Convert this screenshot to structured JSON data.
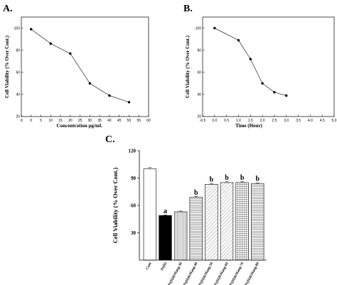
{
  "chart_data": [
    {
      "panel": "A.",
      "type": "line",
      "xlabel": "Concentration µg/mL",
      "ylabel": "Cell Viability (% Over Cont.)",
      "xlim": [
        -5,
        60
      ],
      "ylim": [
        20,
        110
      ],
      "xticks": [
        "-5",
        "0",
        "5",
        "10",
        "15",
        "20",
        "25",
        "30",
        "35",
        "40",
        "45",
        "50",
        "55",
        "60"
      ],
      "yticks": [
        "20",
        "40",
        "60",
        "80",
        "100"
      ],
      "series": [
        {
          "x": [
            0,
            10,
            20,
            30,
            40,
            50
          ],
          "values": [
            99,
            86,
            77,
            50,
            39,
            33
          ]
        }
      ]
    },
    {
      "panel": "B.",
      "type": "line",
      "xlabel": "Time  (Hour)",
      "ylabel": "Cell Viability (% Over Cont.)",
      "xlim": [
        -0.5,
        5.0
      ],
      "ylim": [
        20,
        110
      ],
      "xticks": [
        "-0.5",
        "0.0",
        "0.5",
        "1.0",
        "1.5",
        "2.0",
        "2.5",
        "3.0",
        "3.5",
        "4.0",
        "4.5",
        "5.0"
      ],
      "yticks": [
        "20",
        "40",
        "60",
        "80",
        "100"
      ],
      "series": [
        {
          "x": [
            0.0,
            1.0,
            1.5,
            2.0,
            2.5,
            3.0
          ],
          "values": [
            100,
            89,
            72,
            50,
            42,
            39
          ]
        }
      ]
    },
    {
      "panel": "C.",
      "type": "bar",
      "ylabel": "Cell Viability (% Over Cont.)",
      "ylim": [
        0,
        120
      ],
      "yticks": [
        "30",
        "60",
        "90",
        "120"
      ],
      "categories": [
        "Cont",
        "Pt(II)",
        "Pt(II)&Mang-30",
        "Pt(II)&Mang-40",
        "Pt(II)&Mang-50",
        "Pt(II)&Mang-60",
        "Pt(II)&Mang-70",
        "Pt(II)&Mang-80"
      ],
      "values": [
        100,
        49,
        53,
        69,
        83,
        85,
        85,
        84
      ],
      "errors": [
        1.5,
        0.5,
        0.8,
        0.8,
        1.0,
        1.0,
        1.2,
        0.8
      ],
      "patterns": [
        "white",
        "black",
        "vlines",
        "hlines",
        "diag",
        "diag",
        "grid",
        "hlines"
      ],
      "annotations": [
        "",
        "a",
        "",
        "b",
        "b",
        "b",
        "b",
        "b"
      ]
    }
  ]
}
